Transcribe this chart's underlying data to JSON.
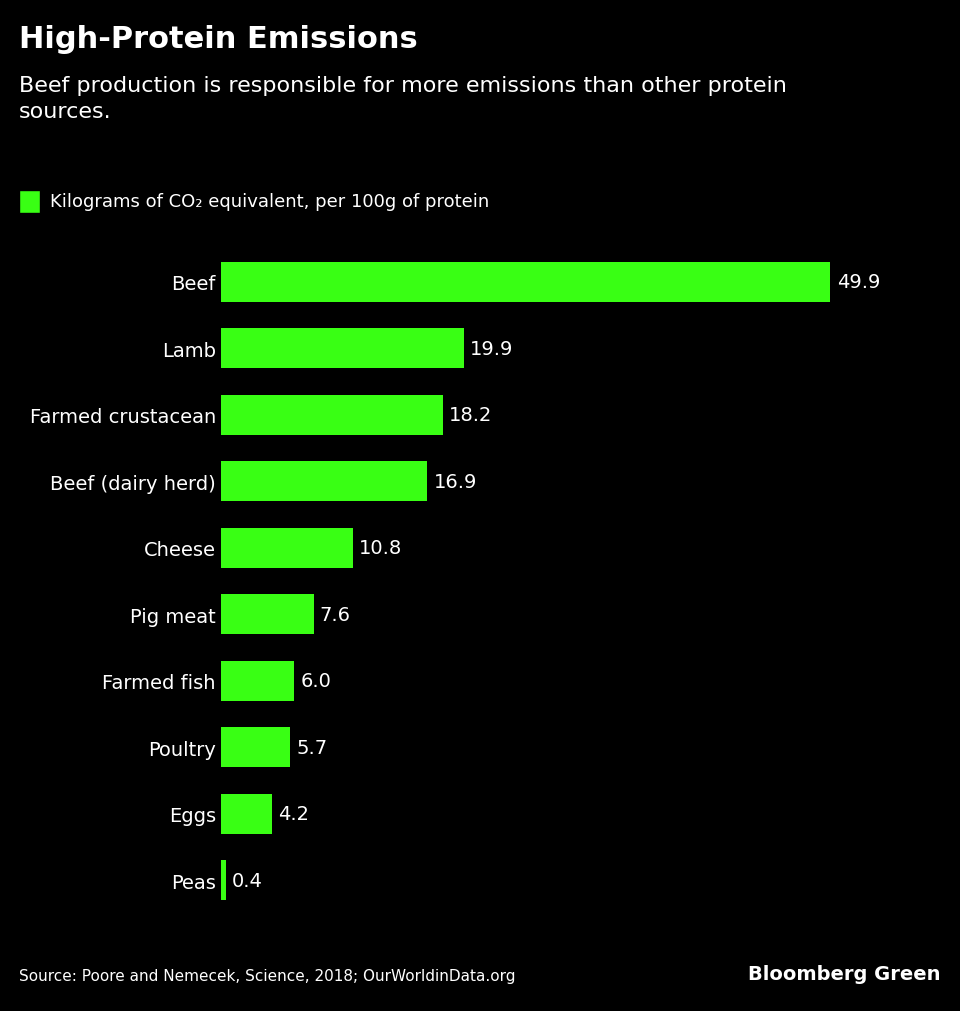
{
  "title": "High-Protein Emissions",
  "subtitle": "Beef production is responsible for more emissions than other protein\nsources.",
  "legend_label": "Kilograms of CO₂ equivalent, per 100g of protein",
  "categories": [
    "Beef",
    "Lamb",
    "Farmed crustacean",
    "Beef (dairy herd)",
    "Cheese",
    "Pig meat",
    "Farmed fish",
    "Poultry",
    "Eggs",
    "Peas"
  ],
  "values": [
    49.9,
    19.9,
    18.2,
    16.9,
    10.8,
    7.6,
    6.0,
    5.7,
    4.2,
    0.4
  ],
  "bar_color": "#39FF14",
  "background_color": "#000000",
  "text_color": "#ffffff",
  "source_text": "Source: Poore and Nemecek, Science, 2018; OurWorldinData.org",
  "brand_text": "Bloomberg Green",
  "xlim": [
    0,
    55
  ],
  "title_fontsize": 22,
  "subtitle_fontsize": 16,
  "label_fontsize": 14,
  "value_fontsize": 14,
  "legend_fontsize": 13,
  "source_fontsize": 11,
  "brand_fontsize": 14
}
